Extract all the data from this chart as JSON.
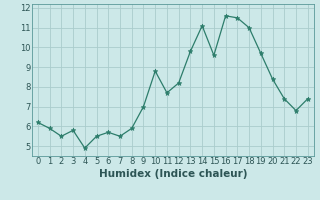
{
  "x": [
    0,
    1,
    2,
    3,
    4,
    5,
    6,
    7,
    8,
    9,
    10,
    11,
    12,
    13,
    14,
    15,
    16,
    17,
    18,
    19,
    20,
    21,
    22,
    23
  ],
  "y": [
    6.2,
    5.9,
    5.5,
    5.8,
    4.9,
    5.5,
    5.7,
    5.5,
    5.9,
    7.0,
    8.8,
    7.7,
    8.2,
    9.8,
    11.1,
    9.6,
    11.6,
    11.5,
    11.0,
    9.7,
    8.4,
    7.4,
    6.8,
    7.4
  ],
  "line_color": "#2d7d6b",
  "marker": "*",
  "marker_size": 3.5,
  "bg_color": "#cce8e8",
  "grid_color": "#aacccc",
  "xlabel": "Humidex (Indice chaleur)",
  "xlabel_fontsize": 7.5,
  "tick_fontsize": 6,
  "xlim": [
    -0.5,
    23.5
  ],
  "ylim": [
    4.5,
    12.2
  ],
  "yticks": [
    5,
    6,
    7,
    8,
    9,
    10,
    11,
    12
  ],
  "xticks": [
    0,
    1,
    2,
    3,
    4,
    5,
    6,
    7,
    8,
    9,
    10,
    11,
    12,
    13,
    14,
    15,
    16,
    17,
    18,
    19,
    20,
    21,
    22,
    23
  ]
}
